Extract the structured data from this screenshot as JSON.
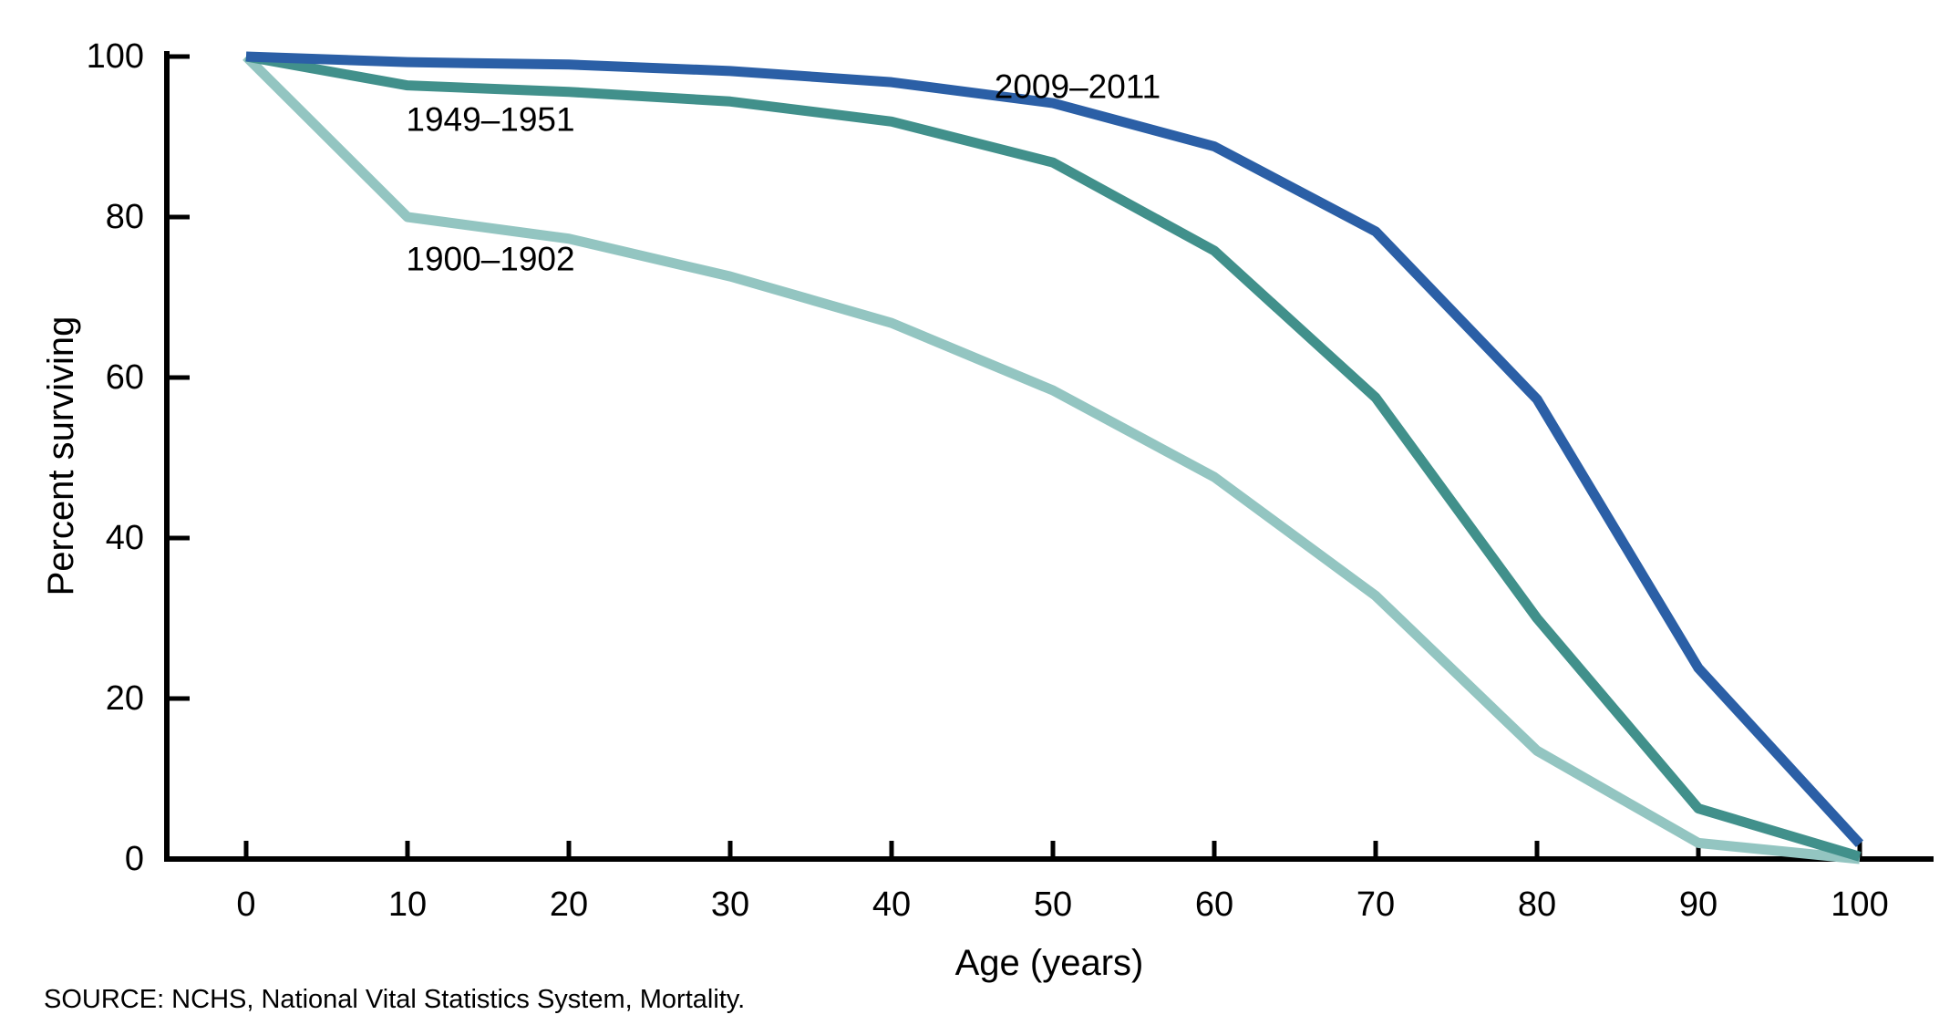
{
  "chart_data": {
    "type": "line",
    "x": [
      0,
      10,
      20,
      30,
      40,
      50,
      60,
      70,
      80,
      90,
      100
    ],
    "xlabel": "Age (years)",
    "ylabel": "Percent surviving",
    "xlim": [
      0,
      100
    ],
    "ylim": [
      0,
      100
    ],
    "x_ticks": [
      0,
      10,
      20,
      30,
      40,
      50,
      60,
      70,
      80,
      90,
      100
    ],
    "y_ticks": [
      0,
      20,
      40,
      60,
      80,
      100
    ],
    "grid": "off",
    "legend": "inline-labels",
    "series": [
      {
        "name": "2009–2011",
        "color": "#2B5FA6",
        "values": [
          100,
          99.3,
          99.0,
          98.2,
          96.8,
          94.2,
          88.8,
          78.2,
          57.3,
          23.8,
          1.9
        ]
      },
      {
        "name": "1949–1951",
        "color": "#41908B",
        "values": [
          100,
          96.4,
          95.6,
          94.4,
          91.9,
          86.8,
          75.8,
          57.5,
          30.0,
          6.3,
          0.3
        ]
      },
      {
        "name": "1900–1902",
        "color": "#93C5C1",
        "values": [
          100,
          80.0,
          77.3,
          72.6,
          66.8,
          58.4,
          47.6,
          32.8,
          13.5,
          2.0,
          0.0
        ]
      }
    ]
  },
  "axes": {
    "x_tick_labels": [
      "0",
      "10",
      "20",
      "30",
      "40",
      "50",
      "60",
      "70",
      "80",
      "90",
      "100"
    ],
    "y_tick_labels": [
      "0",
      "20",
      "40",
      "60",
      "80",
      "100"
    ]
  },
  "annotations": [
    {
      "text": "2009–2011"
    },
    {
      "text": "1949–1951"
    },
    {
      "text": "1900–1902"
    }
  ],
  "source_note": "SOURCE: NCHS, National Vital Statistics System, Mortality.",
  "colors": {
    "axis": "#000000",
    "background": "#FFFFFF",
    "text": "#000000",
    "series_2009_2011": "#2B5FA6",
    "series_1949_1951": "#41908B",
    "series_1900_1902": "#93C5C1"
  }
}
